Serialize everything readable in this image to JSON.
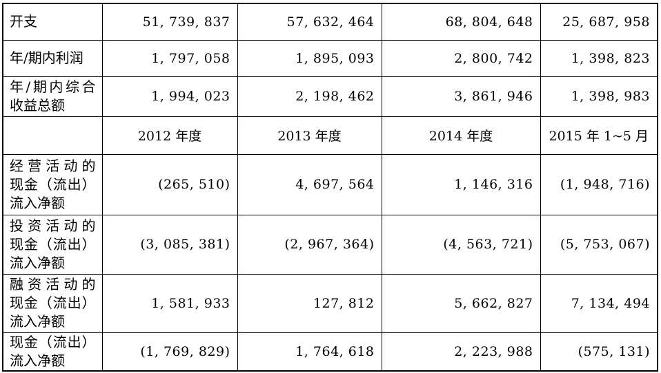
{
  "colors": {
    "background": "#ffffff",
    "border": "#000000",
    "text": "#000000"
  },
  "table": {
    "description_rows_order": "visual top-to-bottom",
    "rows": [
      {
        "kind": "data",
        "label": "开支",
        "values": [
          "51, 739, 837",
          "57, 632, 464",
          "68, 804, 648",
          "25, 687, 958"
        ]
      },
      {
        "kind": "data",
        "label": "年/期内利润",
        "values": [
          "1, 797, 058",
          "1, 895, 093",
          "2, 800, 742",
          "1, 398, 823"
        ]
      },
      {
        "kind": "data",
        "label": "年/期内综合\n收益总额",
        "values": [
          "1, 994, 023",
          "2, 198, 462",
          "3, 861, 946",
          "1, 398, 983"
        ]
      },
      {
        "kind": "header",
        "label": "",
        "values": [
          "2012 年度",
          "2013 年度",
          "2014 年度",
          "2015 年 1~5 月"
        ]
      },
      {
        "kind": "data",
        "label": "经营活动的\n现金（流出）\n流入净额",
        "values": [
          "(265, 510)",
          "4, 697, 564",
          "1, 146, 316",
          "(1, 948, 716)"
        ]
      },
      {
        "kind": "data",
        "label": "投资活动的\n现金（流出）\n流入净额",
        "values": [
          "(3, 085, 381)",
          "(2, 967, 364)",
          "(4, 563, 721)",
          "(5, 753, 067)"
        ]
      },
      {
        "kind": "data",
        "label": "融资活动的\n现金（流出）\n流入净额",
        "values": [
          "1, 581, 933",
          "127, 812",
          "5, 662, 827",
          "7, 134, 494"
        ]
      },
      {
        "kind": "data",
        "label": "现金（流出）\n流入净额",
        "values": [
          "(1, 769, 829)",
          "1, 764, 618",
          "2, 223, 988",
          "(575, 131)"
        ]
      }
    ]
  }
}
